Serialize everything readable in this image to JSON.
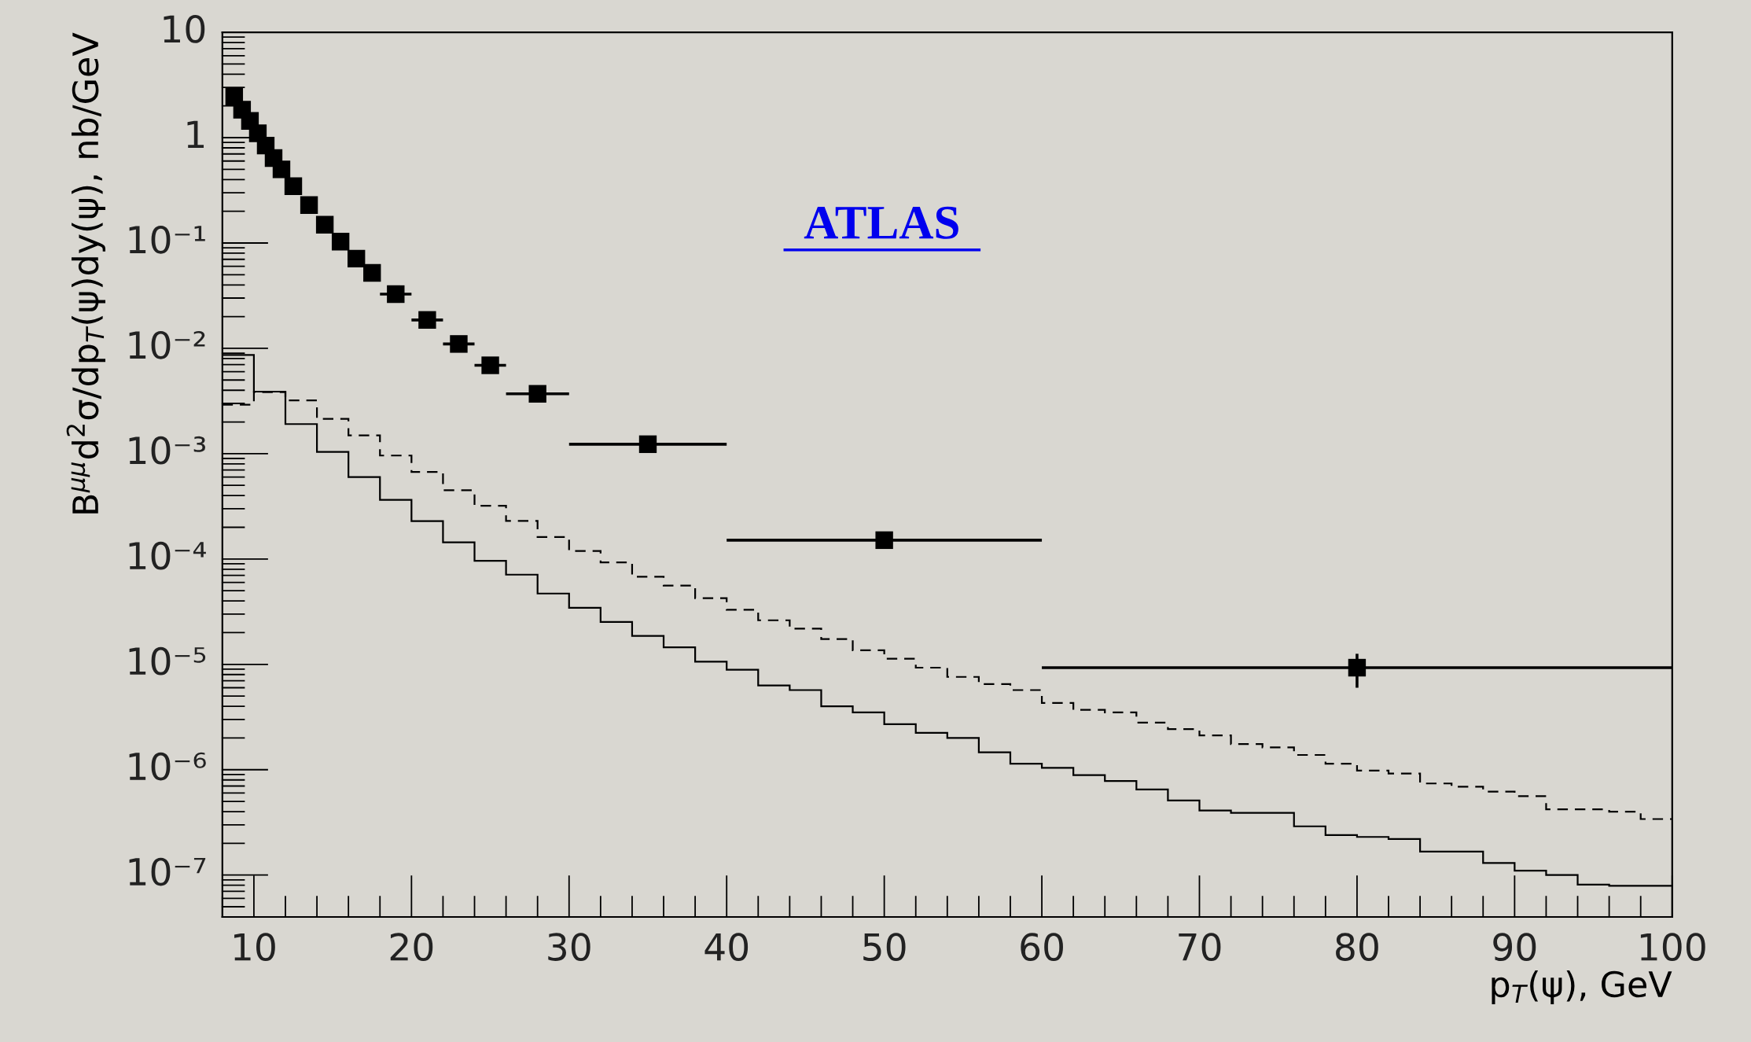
{
  "chart_data": {
    "type": "line",
    "xlabel": "p$_{T}$(ψ), GeV",
    "ylabel": "B$^{μμ}$d$^{2}$σ/dp$_{T}$(ψ)dy(ψ), nb/GeV",
    "annotations": [
      "ATLAS"
    ],
    "log": "y",
    "xlim": [
      8,
      100
    ],
    "xticks": [
      10,
      20,
      30,
      40,
      50,
      60,
      70,
      80,
      90,
      100
    ],
    "ylim": [
      4e-08,
      10
    ],
    "yticks": [
      {
        "value": 10,
        "label": "10"
      },
      {
        "value": 1,
        "label": "1"
      },
      {
        "value": 0.1,
        "label": "10⁻¹"
      },
      {
        "value": 0.01,
        "label": "10⁻²"
      },
      {
        "value": 0.001,
        "label": "10⁻³"
      },
      {
        "value": 0.0001,
        "label": "10⁻⁴"
      },
      {
        "value": 1e-05,
        "label": "10⁻⁵"
      },
      {
        "value": 1e-06,
        "label": "10⁻⁶"
      },
      {
        "value": 1e-07,
        "label": "10⁻⁷"
      }
    ],
    "grid": false,
    "series": [
      {
        "type": "histogram",
        "color": "#000000",
        "line_style": "solid",
        "bins": [
          8,
          10,
          12,
          14,
          16,
          18,
          20,
          22,
          24,
          26,
          28,
          30,
          32,
          34,
          36,
          38,
          40,
          42,
          44,
          46,
          48,
          50,
          52,
          54,
          56,
          58,
          60,
          62,
          64,
          66,
          68,
          70,
          72,
          74,
          76,
          78,
          80,
          82,
          84,
          86,
          88,
          90,
          92,
          94,
          96,
          98,
          100
        ],
        "values": [
          0.00865,
          0.00388,
          0.00191,
          0.00104,
          0.0006,
          0.000365,
          0.000229,
          0.000144,
          9.6e-05,
          7.1e-05,
          4.7e-05,
          3.44e-05,
          2.53e-05,
          1.86e-05,
          1.45e-05,
          1.06e-05,
          8.9e-06,
          6.3e-06,
          5.7e-06,
          4e-06,
          3.5e-06,
          2.7e-06,
          2.24e-06,
          2e-06,
          1.46e-06,
          1.14e-06,
          1.04e-06,
          8.9e-07,
          7.8e-07,
          6.5e-07,
          5.1e-07,
          4.1e-07,
          3.9e-07,
          3.9e-07,
          2.9e-07,
          2.4e-07,
          2.3e-07,
          2.2e-07,
          1.67e-07,
          1.67e-07,
          1.3e-07,
          1.1e-07,
          1e-07,
          8.1e-08,
          7.9e-08,
          7.9e-08
        ]
      },
      {
        "type": "histogram",
        "color": "#000000",
        "line_style": "dashed",
        "bins": [
          8,
          10,
          12,
          14,
          16,
          18,
          20,
          22,
          24,
          26,
          28,
          30,
          32,
          34,
          36,
          38,
          40,
          42,
          44,
          46,
          48,
          50,
          52,
          54,
          56,
          58,
          60,
          62,
          64,
          66,
          68,
          70,
          72,
          74,
          76,
          78,
          80,
          82,
          84,
          86,
          88,
          90,
          92,
          94,
          96,
          98,
          100
        ],
        "values": [
          0.00292,
          0.00384,
          0.0032,
          0.00214,
          0.00149,
          0.00096,
          0.00067,
          0.00045,
          0.00032,
          0.00023,
          0.000162,
          0.000119,
          9.3e-05,
          6.8e-05,
          5.6e-05,
          4.25e-05,
          3.3e-05,
          2.62e-05,
          2.18e-05,
          1.74e-05,
          1.36e-05,
          1.13e-05,
          9.3e-06,
          7.6e-06,
          6.5e-06,
          5.7e-06,
          4.3e-06,
          3.7e-06,
          3.5e-06,
          2.8e-06,
          2.43e-06,
          2.12e-06,
          1.75e-06,
          1.63e-06,
          1.38e-06,
          1.14e-06,
          9.8e-07,
          9.2e-07,
          7.4e-07,
          6.9e-07,
          6.2e-07,
          5.6e-07,
          4.2e-07,
          4.2e-07,
          4e-07,
          3.4e-07
        ]
      },
      {
        "type": "scatter",
        "color": "#000000",
        "marker": "square",
        "x": [
          8.75,
          9.25,
          9.75,
          10.25,
          10.75,
          11.25,
          11.75,
          12.5,
          13.5,
          14.5,
          15.5,
          16.5,
          17.5,
          19,
          21,
          23,
          25,
          28,
          35,
          50,
          80
        ],
        "values": [
          2.45,
          1.84,
          1.44,
          1.1,
          0.84,
          0.64,
          0.5,
          0.346,
          0.229,
          0.149,
          0.103,
          0.071,
          0.052,
          0.0327,
          0.0186,
          0.011,
          0.0069,
          0.0037,
          0.00123,
          0.000151,
          9.3e-06
        ],
        "xerrors": [
          null,
          null,
          null,
          null,
          null,
          null,
          null,
          null,
          null,
          null,
          null,
          null,
          null,
          [
            18,
            20
          ],
          [
            20,
            22
          ],
          [
            22,
            24
          ],
          [
            24,
            26
          ],
          [
            26,
            30
          ],
          [
            30,
            40
          ],
          [
            40,
            60
          ],
          [
            60,
            100
          ]
        ],
        "errors": [
          null,
          null,
          null,
          null,
          null,
          null,
          null,
          null,
          null,
          null,
          null,
          null,
          null,
          null,
          null,
          null,
          null,
          null,
          null,
          null,
          [
            6e-06,
            1.26e-05
          ]
        ]
      }
    ]
  }
}
